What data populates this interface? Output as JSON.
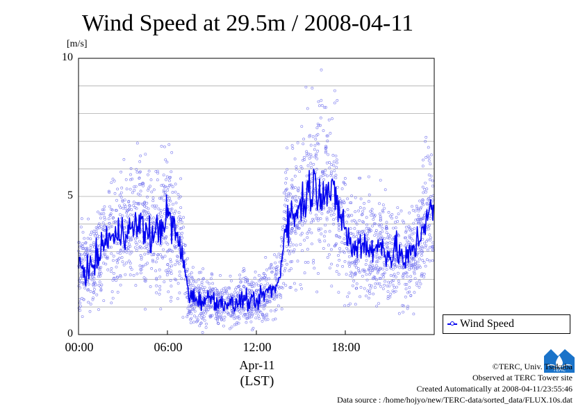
{
  "title": "Wind Speed at 29.5m / 2008-04-11",
  "y_unit": "[m/s]",
  "x_date_label": "Apr-11",
  "x_timezone_label": "(LST)",
  "credits": {
    "copyright": "©TERC, Univ. Tsukuba",
    "observed": "Observed at TERC Tower site",
    "created": "Created Automatically at 2008-04-11/23:55:46",
    "source": "Data source : /home/hojyo/new/TERC-data/sorted_data/FLUX.10s.dat"
  },
  "logo": {
    "text": "TERC",
    "color": "#1a73c9"
  },
  "colors": {
    "line": "#0000ee",
    "points": "#7777ee",
    "grid": "#aaaaaa"
  },
  "chart_data": {
    "type": "line",
    "xlabel": "",
    "ylabel": "[m/s]",
    "ylim": [
      0,
      10
    ],
    "xlim": [
      0,
      24
    ],
    "y_ticks": [
      0,
      5,
      10
    ],
    "y_tick_labels": [
      "0",
      "5",
      "10"
    ],
    "x_ticks": [
      0,
      6,
      12,
      18
    ],
    "x_tick_labels": [
      "00:00",
      "06:00",
      "12:00",
      "18:00"
    ],
    "grid": true,
    "legend": {
      "position": "right-bottom",
      "entries": [
        "Wind Speed"
      ]
    },
    "series": [
      {
        "name": "Wind Speed",
        "style": "line with scatter of raw samples",
        "x": [
          0,
          0.5,
          1,
          1.5,
          2,
          2.5,
          3,
          3.5,
          4,
          4.5,
          5,
          5.5,
          6,
          6.5,
          7,
          7.5,
          8,
          8.5,
          9,
          9.5,
          10,
          10.5,
          11,
          11.5,
          12,
          12.5,
          13,
          13.5,
          14,
          14.5,
          15,
          15.5,
          16,
          16.5,
          17,
          17.5,
          18,
          18.5,
          19,
          19.5,
          20,
          20.5,
          21,
          21.5,
          22,
          22.5,
          23,
          23.5
        ],
        "values": [
          2.6,
          2.3,
          2.5,
          3.0,
          3.6,
          3.4,
          3.9,
          3.7,
          4.0,
          3.8,
          3.5,
          3.9,
          4.3,
          3.8,
          2.8,
          1.4,
          1.3,
          1.2,
          1.4,
          1.1,
          1.2,
          1.0,
          1.3,
          1.2,
          1.1,
          1.5,
          1.6,
          1.8,
          4.2,
          4.3,
          4.7,
          5.2,
          5.4,
          5.3,
          5.1,
          4.7,
          3.8,
          3.0,
          3.4,
          3.2,
          3.0,
          3.3,
          2.8,
          3.1,
          2.6,
          3.0,
          3.5,
          4.4
        ]
      }
    ]
  }
}
